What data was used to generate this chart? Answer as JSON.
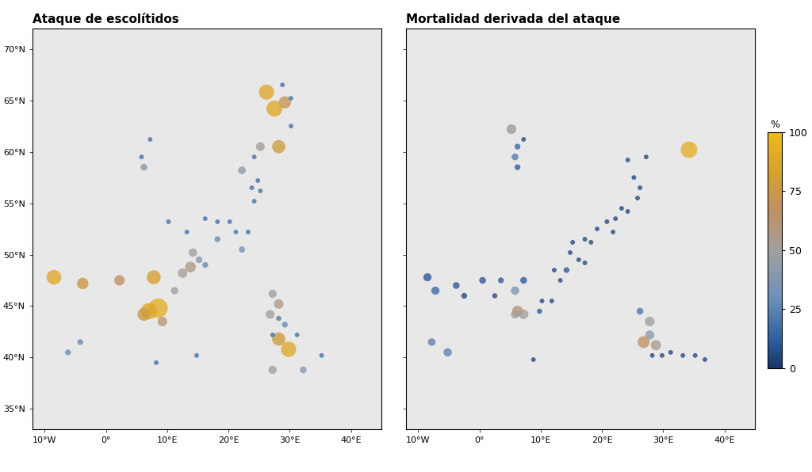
{
  "title_left": "Ataque de escolítidos",
  "title_right": "Mortalidad derivada del ataque",
  "colorbar_label": "%",
  "colorbar_ticks": [
    0,
    25,
    50,
    75,
    100
  ],
  "xlim": [
    -12,
    45
  ],
  "ylim": [
    33,
    72
  ],
  "xticks": [
    -10,
    0,
    10,
    20,
    30,
    40
  ],
  "yticks": [
    35,
    40,
    45,
    50,
    55,
    60,
    65,
    70
  ],
  "land_color": "#e8e8e8",
  "border_color": "#b0b0b0",
  "ocean_color": "#ffffff",
  "attack_points": [
    {
      "lon": -8.5,
      "lat": 47.8,
      "value": 88,
      "size": 180
    },
    {
      "lon": -3.8,
      "lat": 47.2,
      "value": 75,
      "size": 110
    },
    {
      "lon": 2.2,
      "lat": 47.5,
      "value": 68,
      "size": 90
    },
    {
      "lon": 7.8,
      "lat": 47.8,
      "value": 82,
      "size": 160
    },
    {
      "lon": 8.5,
      "lat": 44.8,
      "value": 92,
      "size": 310
    },
    {
      "lon": 7.0,
      "lat": 44.5,
      "value": 88,
      "size": 220
    },
    {
      "lon": 6.2,
      "lat": 44.2,
      "value": 78,
      "size": 140
    },
    {
      "lon": 9.2,
      "lat": 43.5,
      "value": 62,
      "size": 75
    },
    {
      "lon": 11.2,
      "lat": 46.5,
      "value": 48,
      "size": 45
    },
    {
      "lon": 12.5,
      "lat": 48.2,
      "value": 52,
      "size": 75
    },
    {
      "lon": 14.2,
      "lat": 50.2,
      "value": 50,
      "size": 58
    },
    {
      "lon": 13.8,
      "lat": 48.8,
      "value": 58,
      "size": 95
    },
    {
      "lon": 15.2,
      "lat": 49.5,
      "value": 38,
      "size": 38
    },
    {
      "lon": 16.2,
      "lat": 49.0,
      "value": 28,
      "size": 28
    },
    {
      "lon": 10.2,
      "lat": 53.2,
      "value": 18,
      "size": 18
    },
    {
      "lon": 13.2,
      "lat": 52.2,
      "value": 18,
      "size": 18
    },
    {
      "lon": 16.2,
      "lat": 53.5,
      "value": 18,
      "size": 18
    },
    {
      "lon": 18.2,
      "lat": 53.2,
      "value": 18,
      "size": 18
    },
    {
      "lon": 18.2,
      "lat": 51.5,
      "value": 28,
      "size": 28
    },
    {
      "lon": 20.2,
      "lat": 53.2,
      "value": 18,
      "size": 18
    },
    {
      "lon": 21.2,
      "lat": 52.2,
      "value": 18,
      "size": 18
    },
    {
      "lon": 23.2,
      "lat": 52.2,
      "value": 18,
      "size": 18
    },
    {
      "lon": 22.2,
      "lat": 50.5,
      "value": 32,
      "size": 32
    },
    {
      "lon": 24.2,
      "lat": 55.2,
      "value": 18,
      "size": 18
    },
    {
      "lon": 25.2,
      "lat": 56.2,
      "value": 18,
      "size": 18
    },
    {
      "lon": 24.8,
      "lat": 57.2,
      "value": 18,
      "size": 18
    },
    {
      "lon": 23.8,
      "lat": 56.5,
      "value": 18,
      "size": 18
    },
    {
      "lon": 22.2,
      "lat": 58.2,
      "value": 42,
      "size": 48
    },
    {
      "lon": 24.2,
      "lat": 59.5,
      "value": 18,
      "size": 18
    },
    {
      "lon": 25.2,
      "lat": 60.5,
      "value": 52,
      "size": 65
    },
    {
      "lon": 28.2,
      "lat": 60.5,
      "value": 78,
      "size": 145
    },
    {
      "lon": 27.5,
      "lat": 64.2,
      "value": 88,
      "size": 210
    },
    {
      "lon": 29.2,
      "lat": 64.8,
      "value": 72,
      "size": 125
    },
    {
      "lon": 26.2,
      "lat": 65.8,
      "value": 88,
      "size": 190
    },
    {
      "lon": 30.2,
      "lat": 62.5,
      "value": 18,
      "size": 18
    },
    {
      "lon": 30.2,
      "lat": 65.2,
      "value": 18,
      "size": 18
    },
    {
      "lon": 28.8,
      "lat": 66.5,
      "value": 18,
      "size": 18
    },
    {
      "lon": 27.2,
      "lat": 46.2,
      "value": 48,
      "size": 55
    },
    {
      "lon": 28.2,
      "lat": 45.2,
      "value": 58,
      "size": 75
    },
    {
      "lon": 26.8,
      "lat": 44.2,
      "value": 52,
      "size": 65
    },
    {
      "lon": 28.2,
      "lat": 41.8,
      "value": 78,
      "size": 145
    },
    {
      "lon": 29.8,
      "lat": 40.8,
      "value": 88,
      "size": 195
    },
    {
      "lon": 27.2,
      "lat": 38.8,
      "value": 48,
      "size": 55
    },
    {
      "lon": 32.2,
      "lat": 38.8,
      "value": 38,
      "size": 38
    },
    {
      "lon": 35.2,
      "lat": 40.2,
      "value": 18,
      "size": 18
    },
    {
      "lon": 31.2,
      "lat": 42.2,
      "value": 18,
      "size": 18
    },
    {
      "lon": 29.2,
      "lat": 43.2,
      "value": 28,
      "size": 28
    },
    {
      "lon": 28.2,
      "lat": 43.8,
      "value": 22,
      "size": 22
    },
    {
      "lon": 27.2,
      "lat": 42.2,
      "value": 18,
      "size": 18
    },
    {
      "lon": -4.2,
      "lat": 41.5,
      "value": 28,
      "size": 28
    },
    {
      "lon": -6.2,
      "lat": 40.5,
      "value": 28,
      "size": 28
    },
    {
      "lon": 8.2,
      "lat": 39.5,
      "value": 18,
      "size": 18
    },
    {
      "lon": 14.8,
      "lat": 40.2,
      "value": 18,
      "size": 18
    },
    {
      "lon": 5.8,
      "lat": 59.5,
      "value": 18,
      "size": 18
    },
    {
      "lon": 7.2,
      "lat": 61.2,
      "value": 18,
      "size": 18
    },
    {
      "lon": 6.2,
      "lat": 58.5,
      "value": 38,
      "size": 38
    }
  ],
  "mortality_points": [
    {
      "lon": -8.5,
      "lat": 47.8,
      "value": 10,
      "size": 55
    },
    {
      "lon": -7.2,
      "lat": 46.5,
      "value": 15,
      "size": 55
    },
    {
      "lon": -3.8,
      "lat": 47.0,
      "value": 10,
      "size": 38
    },
    {
      "lon": 0.5,
      "lat": 47.5,
      "value": 10,
      "size": 38
    },
    {
      "lon": -2.5,
      "lat": 46.0,
      "value": 5,
      "size": 28
    },
    {
      "lon": 2.5,
      "lat": 46.0,
      "value": 5,
      "size": 22
    },
    {
      "lon": 3.5,
      "lat": 47.5,
      "value": 10,
      "size": 28
    },
    {
      "lon": 5.8,
      "lat": 46.5,
      "value": 35,
      "size": 58
    },
    {
      "lon": 7.2,
      "lat": 47.5,
      "value": 10,
      "size": 38
    },
    {
      "lon": 6.2,
      "lat": 44.5,
      "value": 65,
      "size": 98
    },
    {
      "lon": 7.2,
      "lat": 44.2,
      "value": 50,
      "size": 78
    },
    {
      "lon": 5.8,
      "lat": 44.2,
      "value": 50,
      "size": 58
    },
    {
      "lon": 9.8,
      "lat": 44.5,
      "value": 10,
      "size": 22
    },
    {
      "lon": 10.2,
      "lat": 45.5,
      "value": 5,
      "size": 18
    },
    {
      "lon": 11.8,
      "lat": 45.5,
      "value": 5,
      "size": 18
    },
    {
      "lon": 13.2,
      "lat": 47.5,
      "value": 5,
      "size": 18
    },
    {
      "lon": 14.2,
      "lat": 48.5,
      "value": 10,
      "size": 28
    },
    {
      "lon": 14.8,
      "lat": 50.2,
      "value": 5,
      "size": 18
    },
    {
      "lon": 16.2,
      "lat": 49.5,
      "value": 5,
      "size": 18
    },
    {
      "lon": 17.2,
      "lat": 49.2,
      "value": 5,
      "size": 18
    },
    {
      "lon": 15.2,
      "lat": 51.2,
      "value": 5,
      "size": 18
    },
    {
      "lon": 17.2,
      "lat": 51.5,
      "value": 5,
      "size": 18
    },
    {
      "lon": 18.2,
      "lat": 51.2,
      "value": 5,
      "size": 18
    },
    {
      "lon": 19.2,
      "lat": 52.5,
      "value": 5,
      "size": 18
    },
    {
      "lon": 20.8,
      "lat": 53.2,
      "value": 5,
      "size": 18
    },
    {
      "lon": 21.8,
      "lat": 52.2,
      "value": 5,
      "size": 18
    },
    {
      "lon": 22.2,
      "lat": 53.5,
      "value": 5,
      "size": 18
    },
    {
      "lon": 23.2,
      "lat": 54.5,
      "value": 5,
      "size": 18
    },
    {
      "lon": 24.2,
      "lat": 54.2,
      "value": 5,
      "size": 18
    },
    {
      "lon": 25.8,
      "lat": 55.5,
      "value": 5,
      "size": 18
    },
    {
      "lon": 26.2,
      "lat": 56.5,
      "value": 5,
      "size": 18
    },
    {
      "lon": 25.2,
      "lat": 57.5,
      "value": 5,
      "size": 18
    },
    {
      "lon": 24.2,
      "lat": 59.2,
      "value": 5,
      "size": 18
    },
    {
      "lon": 27.2,
      "lat": 59.5,
      "value": 5,
      "size": 18
    },
    {
      "lon": 34.2,
      "lat": 60.2,
      "value": 92,
      "size": 225
    },
    {
      "lon": 7.2,
      "lat": 61.2,
      "value": 5,
      "size": 18
    },
    {
      "lon": 5.8,
      "lat": 59.5,
      "value": 22,
      "size": 38
    },
    {
      "lon": 6.2,
      "lat": 58.5,
      "value": 12,
      "size": 28
    },
    {
      "lon": 5.2,
      "lat": 62.2,
      "value": 45,
      "size": 78
    },
    {
      "lon": 6.2,
      "lat": 60.5,
      "value": 15,
      "size": 28
    },
    {
      "lon": 26.2,
      "lat": 44.5,
      "value": 20,
      "size": 38
    },
    {
      "lon": 27.8,
      "lat": 43.5,
      "value": 50,
      "size": 78
    },
    {
      "lon": 27.8,
      "lat": 42.2,
      "value": 42,
      "size": 68
    },
    {
      "lon": 26.8,
      "lat": 41.5,
      "value": 68,
      "size": 118
    },
    {
      "lon": 28.8,
      "lat": 41.2,
      "value": 55,
      "size": 88
    },
    {
      "lon": 28.2,
      "lat": 40.2,
      "value": 5,
      "size": 18
    },
    {
      "lon": 29.8,
      "lat": 40.2,
      "value": 5,
      "size": 18
    },
    {
      "lon": 31.2,
      "lat": 40.5,
      "value": 5,
      "size": 18
    },
    {
      "lon": 33.2,
      "lat": 40.2,
      "value": 5,
      "size": 18
    },
    {
      "lon": 35.2,
      "lat": 40.2,
      "value": 5,
      "size": 18
    },
    {
      "lon": 36.8,
      "lat": 39.8,
      "value": 5,
      "size": 18
    },
    {
      "lon": -5.2,
      "lat": 40.5,
      "value": 25,
      "size": 58
    },
    {
      "lon": -7.8,
      "lat": 41.5,
      "value": 25,
      "size": 48
    },
    {
      "lon": 8.8,
      "lat": 39.8,
      "value": 5,
      "size": 18
    },
    {
      "lon": 12.2,
      "lat": 48.5,
      "value": 5,
      "size": 18
    }
  ]
}
